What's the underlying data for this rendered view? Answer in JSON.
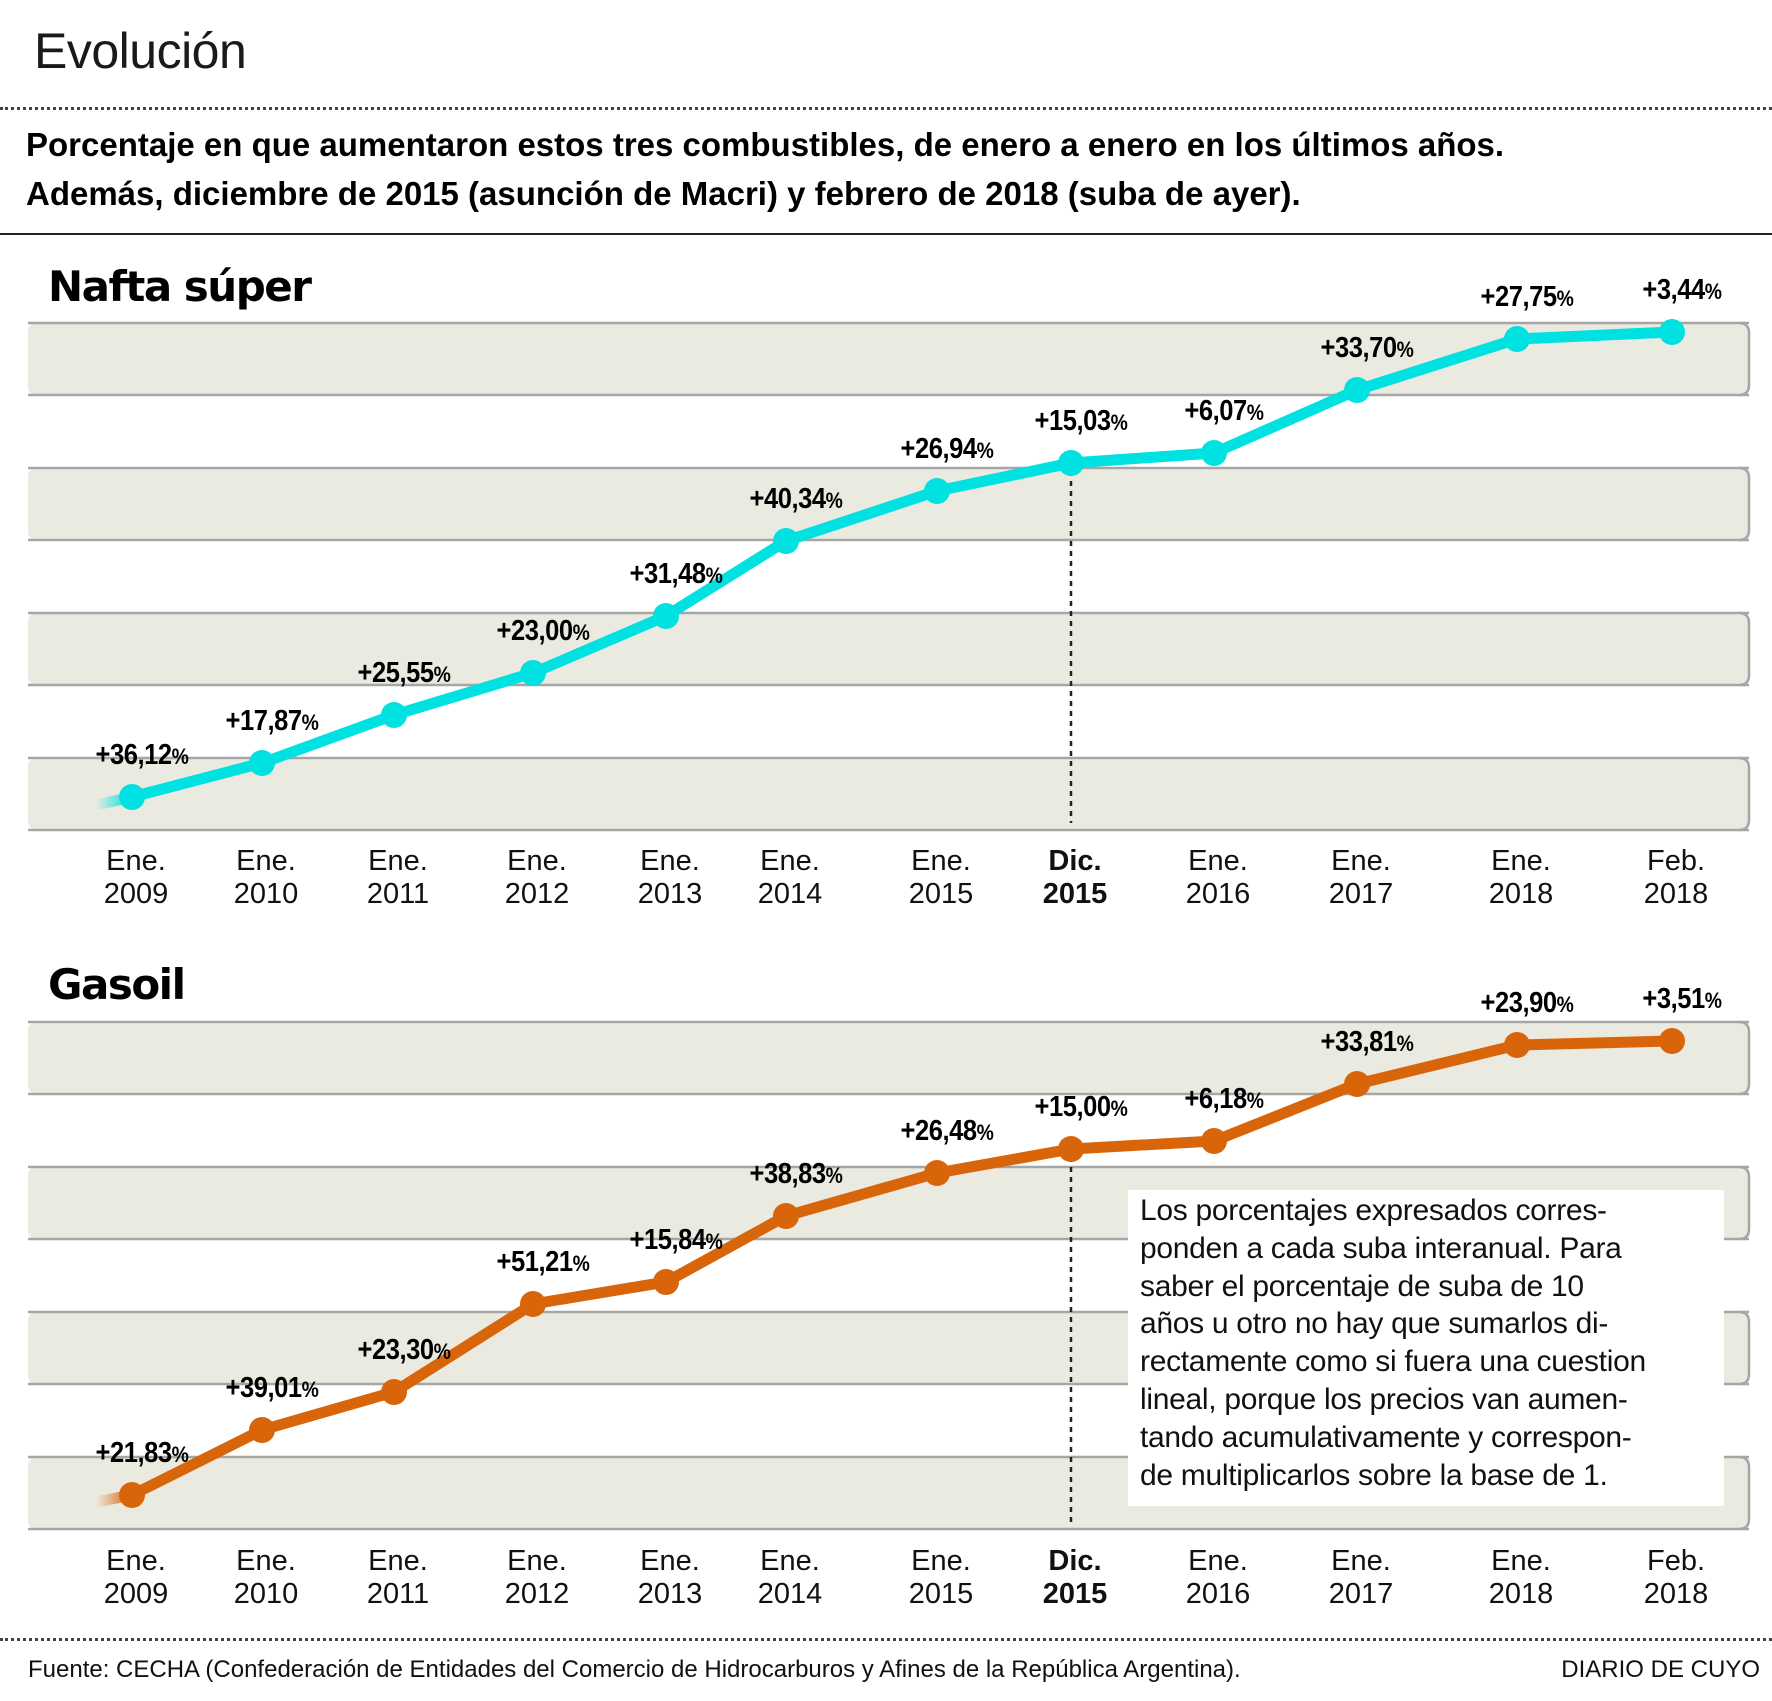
{
  "header": {
    "title": "Evolución",
    "subtitle_lines": [
      "Porcentaje en que aumentaron estos tres combustibles, de enero a enero en los últimos años.",
      "Además, diciembre de 2015 (asunción de Macri) y febrero de 2018 (suba de ayer)."
    ]
  },
  "colors": {
    "nafta": "#00e1e1",
    "gasoil": "#d9650b",
    "band": "#ebeae0",
    "band_border": "#a6a6a6"
  },
  "chart_data": [
    {
      "type": "line",
      "title": "Nafta súper",
      "categories": [
        [
          "Ene.",
          "2009"
        ],
        [
          "Ene.",
          "2010"
        ],
        [
          "Ene.",
          "2011"
        ],
        [
          "Ene.",
          "2012"
        ],
        [
          "Ene.",
          "2013"
        ],
        [
          "Ene.",
          "2014"
        ],
        [
          "Ene.",
          "2015"
        ],
        [
          "Dic.",
          "2015"
        ],
        [
          "Ene.",
          "2016"
        ],
        [
          "Ene.",
          "2017"
        ],
        [
          "Ene.",
          "2018"
        ],
        [
          "Feb.",
          "2018"
        ]
      ],
      "highlight_category": 7,
      "series": [
        {
          "name": "Nafta súper",
          "labels": [
            "+36,12",
            "+17,87",
            "+25,55",
            "+23,00",
            "+31,48",
            "+40,34",
            "+26,94",
            "+15,03",
            "+6,07",
            "+33,70",
            "+27,75",
            "+3,44"
          ],
          "values": [
            36.12,
            17.87,
            25.55,
            23.0,
            31.48,
            40.34,
            26.94,
            15.03,
            6.07,
            33.7,
            27.75,
            3.44
          ]
        }
      ],
      "unit": "%",
      "xlabel": "",
      "ylabel": "",
      "grid": "alternating horizontal bands"
    },
    {
      "type": "line",
      "title": "Gasoil",
      "categories": [
        [
          "Ene.",
          "2009"
        ],
        [
          "Ene.",
          "2010"
        ],
        [
          "Ene.",
          "2011"
        ],
        [
          "Ene.",
          "2012"
        ],
        [
          "Ene.",
          "2013"
        ],
        [
          "Ene.",
          "2014"
        ],
        [
          "Ene.",
          "2015"
        ],
        [
          "Dic.",
          "2015"
        ],
        [
          "Ene.",
          "2016"
        ],
        [
          "Ene.",
          "2017"
        ],
        [
          "Ene.",
          "2018"
        ],
        [
          "Feb.",
          "2018"
        ]
      ],
      "highlight_category": 7,
      "series": [
        {
          "name": "Gasoil",
          "labels": [
            "+21,83",
            "+39,01",
            "+23,30",
            "+51,21",
            "+15,84",
            "+38,83",
            "+26,48",
            "+15,00",
            "+6,18",
            "+33,81",
            "+23,90",
            "+3,51"
          ],
          "values": [
            21.83,
            39.01,
            23.3,
            51.21,
            15.84,
            38.83,
            26.48,
            15.0,
            6.18,
            33.81,
            23.9,
            3.51
          ]
        }
      ],
      "unit": "%",
      "xlabel": "",
      "ylabel": "",
      "grid": "alternating horizontal bands",
      "annotation": [
        "Los porcentajes expresados corres-",
        "ponden a cada suba interanual. Para",
        "saber el porcentaje de suba de 10",
        "años u otro no hay que sumarlos di-",
        "rectamente como si fuera una cuestion",
        "lineal, porque los precios van aumen-",
        "tando acumulativamente y correspon-",
        "de multiplicarlos sobre la base de 1."
      ]
    }
  ],
  "footer": {
    "source": "Fuente: CECHA (Confederación de Entidades del Comercio de Hidrocarburos y Afines de la República Argentina).",
    "brand": "DIARIO DE CUYO"
  }
}
